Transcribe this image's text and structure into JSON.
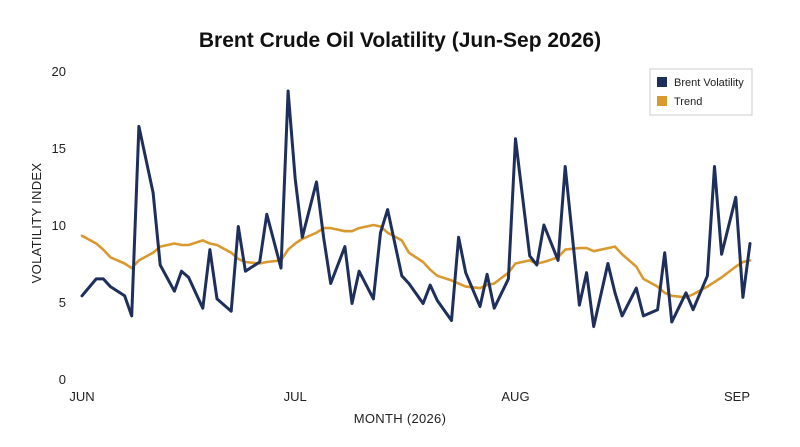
{
  "chart_data": {
    "type": "line",
    "title": "Brent Crude Oil Volatility (Jun-Sep 2026)",
    "xlabel": "MONTH (2026)",
    "ylabel": "VOLATILITY INDEX",
    "ylim": [
      0,
      20
    ],
    "yticks": [
      0,
      5,
      10,
      15,
      20
    ],
    "xticks": [
      "JUN",
      "JUL",
      "AUG",
      "SEP"
    ],
    "legend_position": "top-right",
    "grid": false,
    "x": [
      "2026-06-01",
      "2026-06-03",
      "2026-06-04",
      "2026-06-05",
      "2026-06-07",
      "2026-06-08",
      "2026-06-09",
      "2026-06-11",
      "2026-06-12",
      "2026-06-14",
      "2026-06-15",
      "2026-06-16",
      "2026-06-18",
      "2026-06-19",
      "2026-06-20",
      "2026-06-22",
      "2026-06-23",
      "2026-06-24",
      "2026-06-26",
      "2026-06-27",
      "2026-06-29",
      "2026-06-30",
      "2026-07-01",
      "2026-07-02",
      "2026-07-04",
      "2026-07-05",
      "2026-07-06",
      "2026-07-08",
      "2026-07-09",
      "2026-07-10",
      "2026-07-12",
      "2026-07-13",
      "2026-07-14",
      "2026-07-16",
      "2026-07-17",
      "2026-07-19",
      "2026-07-20",
      "2026-07-21",
      "2026-07-23",
      "2026-07-24",
      "2026-07-25",
      "2026-07-27",
      "2026-07-28",
      "2026-07-29",
      "2026-07-31",
      "2026-08-01",
      "2026-08-03",
      "2026-08-04",
      "2026-08-05",
      "2026-08-07",
      "2026-08-08",
      "2026-08-10",
      "2026-08-11",
      "2026-08-12",
      "2026-08-14",
      "2026-08-15",
      "2026-08-16",
      "2026-08-18",
      "2026-08-19",
      "2026-08-21",
      "2026-08-22",
      "2026-08-23",
      "2026-08-25",
      "2026-08-26",
      "2026-08-28",
      "2026-08-29",
      "2026-08-30",
      "2026-09-01",
      "2026-09-02"
    ],
    "series": [
      {
        "name": "Brent Volatility",
        "color": "#1f2f5c",
        "values": [
          5.4,
          6.5,
          6.5,
          6.0,
          5.4,
          4.1,
          16.4,
          12.1,
          7.4,
          5.7,
          7.0,
          6.6,
          4.6,
          8.4,
          5.2,
          4.4,
          9.9,
          7.0,
          7.6,
          10.7,
          7.2,
          18.7,
          13.0,
          9.2,
          12.8,
          9.2,
          6.2,
          8.6,
          4.9,
          7.0,
          5.2,
          9.5,
          11.0,
          6.7,
          6.2,
          4.9,
          6.1,
          5.1,
          3.8,
          9.2,
          6.9,
          4.7,
          6.8,
          4.6,
          6.5,
          15.6,
          8.0,
          7.4,
          10.0,
          7.7,
          13.8,
          4.8,
          6.9,
          3.4,
          7.5,
          5.6,
          4.1,
          5.9,
          4.1,
          4.5,
          8.2,
          3.7,
          5.6,
          4.5,
          6.7,
          13.8,
          8.1,
          11.8,
          5.3
        ]
      },
      {
        "name": "Trend",
        "color": "#d89a30",
        "values": [
          9.3,
          8.8,
          8.4,
          7.9,
          7.5,
          7.2,
          7.7,
          8.2,
          8.6,
          8.8,
          8.7,
          8.7,
          9.0,
          8.8,
          8.7,
          8.2,
          7.8,
          7.6,
          7.5,
          7.6,
          7.7,
          8.4,
          8.8,
          9.1,
          9.5,
          9.8,
          9.8,
          9.6,
          9.6,
          9.8,
          10.0,
          9.9,
          9.5,
          9.0,
          8.2,
          7.6,
          7.1,
          6.7,
          6.4,
          6.2,
          6.0,
          5.9,
          6.1,
          6.2,
          6.9,
          7.5,
          7.7,
          7.5,
          7.6,
          7.9,
          8.4,
          8.5,
          8.5,
          8.3,
          8.5,
          8.6,
          8.1,
          7.3,
          6.5,
          6.0,
          5.6,
          5.4,
          5.3,
          5.5,
          6.0,
          6.3,
          6.6,
          7.3,
          7.6
        ]
      }
    ],
    "extra_point": {
      "x": "2026-09-03",
      "brent": 8.8,
      "trend": 7.7
    }
  }
}
